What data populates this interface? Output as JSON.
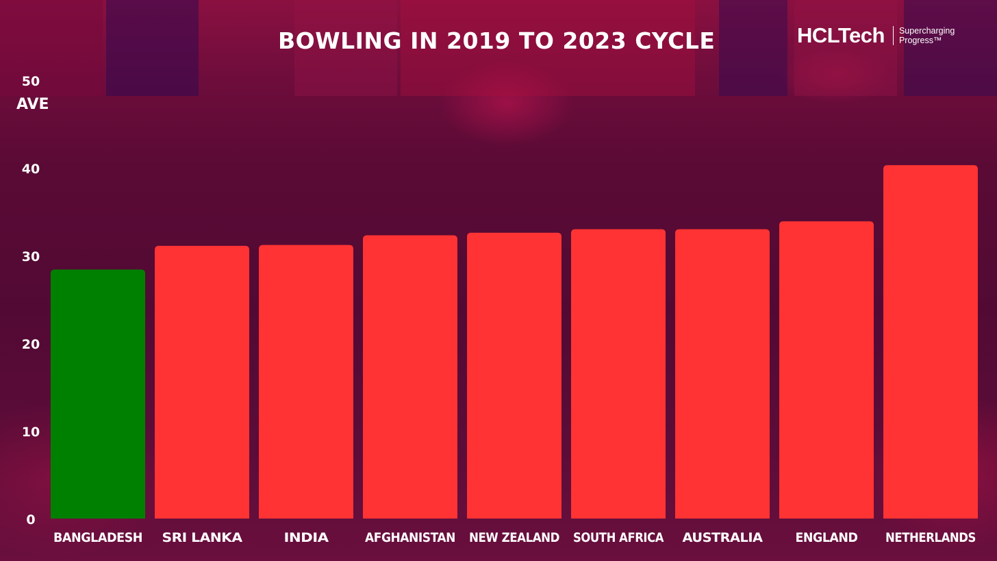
{
  "header": {
    "title": "BOWLING IN 2019 TO 2023 CYCLE"
  },
  "logo": {
    "brand": "HCLTech",
    "tagline_line1": "Supercharging",
    "tagline_line2": "Progress™"
  },
  "colors": {
    "highlight_bar": "#008000",
    "default_bar": "#ff3333",
    "text": "#ffffff"
  },
  "chart_data": {
    "type": "bar",
    "title": "BOWLING IN 2019 TO 2023 CYCLE",
    "xlabel": "",
    "ylabel": "AVE",
    "ylim": [
      0,
      50
    ],
    "yticks": [
      0,
      10,
      20,
      30,
      40,
      50
    ],
    "grid": false,
    "categories": [
      "BANGLADESH",
      "SRI LANKA",
      "INDIA",
      "AFGHANISTAN",
      "NEW ZEALAND",
      "SOUTH AFRICA",
      "AUSTRALIA",
      "ENGLAND",
      "NETHERLANDS"
    ],
    "values": [
      28.4,
      31.1,
      31.2,
      32.3,
      32.6,
      33.0,
      33.0,
      33.9,
      40.3
    ],
    "highlighted_category": "BANGLADESH"
  }
}
